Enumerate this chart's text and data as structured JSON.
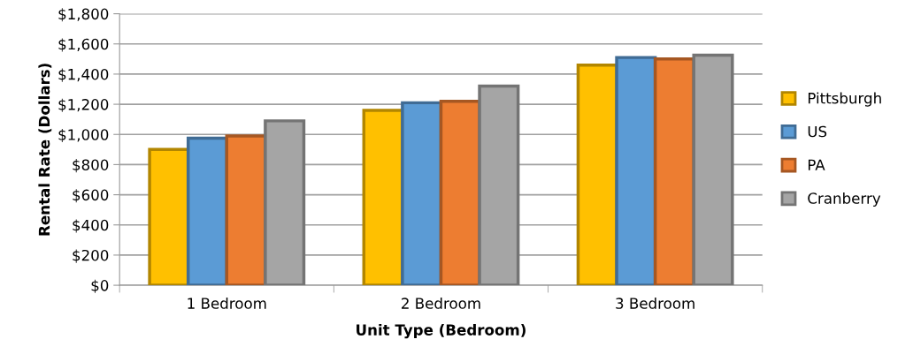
{
  "chart_data": {
    "type": "bar",
    "xlabel": "Unit Type (Bedroom)",
    "ylabel": "Rental Rate (Dollars)",
    "categories": [
      "1 Bedroom",
      "2 Bedroom",
      "3 Bedroom"
    ],
    "series": [
      {
        "name": "Pittsburgh",
        "color": "#ffc000",
        "values": [
          900,
          1160,
          1460
        ]
      },
      {
        "name": "US",
        "color": "#5b9bd5",
        "values": [
          975,
          1210,
          1510
        ]
      },
      {
        "name": "PA",
        "color": "#ed7d31",
        "values": [
          990,
          1220,
          1500
        ]
      },
      {
        "name": "Cranberry",
        "color": "#a5a5a5",
        "values": [
          1090,
          1320,
          1525
        ]
      }
    ],
    "ylim": [
      0,
      1800
    ],
    "yticks": [
      {
        "value": 0,
        "label": "$0"
      },
      {
        "value": 200,
        "label": "$200"
      },
      {
        "value": 400,
        "label": "$400"
      },
      {
        "value": 600,
        "label": "$600"
      },
      {
        "value": 800,
        "label": "$800"
      },
      {
        "value": 1000,
        "label": "$1,000"
      },
      {
        "value": 1200,
        "label": "$1,200"
      },
      {
        "value": 1400,
        "label": "$1,400"
      },
      {
        "value": 1600,
        "label": "$1,600"
      },
      {
        "value": 1800,
        "label": "$1,800"
      }
    ],
    "grid": "y",
    "legend": "right"
  }
}
